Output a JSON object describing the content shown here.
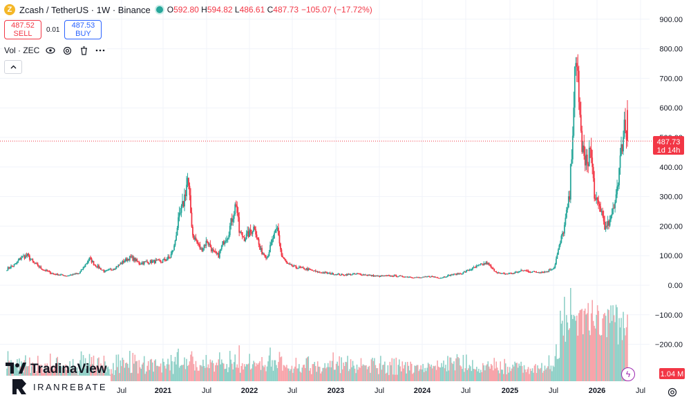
{
  "header": {
    "coin_icon": "Z",
    "symbol": "Zcash / TetherUS · 1W · Binance",
    "status_dot_color": "#26a69a",
    "ohlc": {
      "o_label": "O",
      "o": "592.80",
      "h_label": "H",
      "h": "594.82",
      "l_label": "L",
      "l": "486.61",
      "c_label": "C",
      "c": "487.73",
      "change": "−105.07 (−17.72%)"
    }
  },
  "trade": {
    "sell_price": "487.52",
    "sell_label": "SELL",
    "spread": "0.01",
    "buy_price": "487.53",
    "buy_label": "BUY"
  },
  "volume_indicator": {
    "label": "Vol · ZEC",
    "icons": [
      "eye-icon",
      "settings-icon",
      "trash-icon",
      "more-icon"
    ]
  },
  "collapse_icon": "chevron-up-icon",
  "logos": {
    "primary": "TradinaView",
    "secondary": "IRANREBATE"
  },
  "colors": {
    "up": "#26a69a",
    "down": "#f23645",
    "up_vol": "#8fd0c7",
    "down_vol": "#f7a4aa",
    "grid": "#f0f3fa"
  },
  "chart_data": {
    "type": "candlestick",
    "interval": "1W",
    "price_axis": {
      "ticks": [
        900,
        800,
        700,
        600,
        500,
        400,
        300,
        200,
        100,
        0,
        -100,
        -200
      ],
      "tick_labels": [
        "900.00",
        "800.00",
        "700.00",
        "600.00",
        "500.00",
        "400.00",
        "300.00",
        "200.00",
        "100.00",
        "0.00",
        "−100.00",
        "−200.00"
      ],
      "range": [
        -300,
        930
      ]
    },
    "time_axis": {
      "labels": [
        "Jul",
        "2021",
        "Jul",
        "2022",
        "Jul",
        "2023",
        "Jul",
        "2024",
        "Jul",
        "2025",
        "Jul",
        "2026",
        "Jul"
      ],
      "bold": [
        false,
        true,
        false,
        true,
        false,
        true,
        false,
        true,
        false,
        true,
        false,
        true,
        false
      ]
    },
    "last_price": {
      "value": 487.73,
      "label": "487.73",
      "countdown": "1d 14h"
    },
    "volume_label": "1.04 M",
    "anchors": [
      [
        0,
        55
      ],
      [
        8,
        70
      ],
      [
        14,
        95
      ],
      [
        20,
        100
      ],
      [
        26,
        75
      ],
      [
        34,
        55
      ],
      [
        45,
        38
      ],
      [
        58,
        32
      ],
      [
        70,
        40
      ],
      [
        80,
        90
      ],
      [
        85,
        70
      ],
      [
        95,
        45
      ],
      [
        105,
        60
      ],
      [
        115,
        85
      ],
      [
        120,
        95
      ],
      [
        128,
        75
      ],
      [
        140,
        80
      ],
      [
        150,
        80
      ],
      [
        158,
        95
      ],
      [
        162,
        130
      ],
      [
        165,
        200
      ],
      [
        171,
        280
      ],
      [
        175,
        360
      ],
      [
        180,
        170
      ],
      [
        188,
        120
      ],
      [
        194,
        150
      ],
      [
        200,
        110
      ],
      [
        205,
        100
      ],
      [
        210,
        150
      ],
      [
        214,
        170
      ],
      [
        218,
        225
      ],
      [
        222,
        280
      ],
      [
        225,
        180
      ],
      [
        230,
        160
      ],
      [
        236,
        180
      ],
      [
        240,
        200
      ],
      [
        245,
        120
      ],
      [
        252,
        95
      ],
      [
        258,
        160
      ],
      [
        262,
        190
      ],
      [
        266,
        100
      ],
      [
        272,
        70
      ],
      [
        280,
        60
      ],
      [
        290,
        55
      ],
      [
        300,
        45
      ],
      [
        312,
        40
      ],
      [
        325,
        35
      ],
      [
        340,
        38
      ],
      [
        360,
        30
      ],
      [
        375,
        32
      ],
      [
        390,
        28
      ],
      [
        400,
        25
      ],
      [
        410,
        30
      ],
      [
        420,
        25
      ],
      [
        430,
        35
      ],
      [
        440,
        40
      ],
      [
        450,
        55
      ],
      [
        460,
        70
      ],
      [
        465,
        75
      ],
      [
        470,
        55
      ],
      [
        478,
        38
      ],
      [
        490,
        40
      ],
      [
        500,
        50
      ],
      [
        510,
        45
      ],
      [
        522,
        45
      ],
      [
        530,
        60
      ],
      [
        540,
        200
      ],
      [
        545,
        300
      ],
      [
        550,
        700
      ],
      [
        553,
        720
      ],
      [
        556,
        500
      ],
      [
        560,
        400
      ],
      [
        565,
        460
      ],
      [
        570,
        280
      ],
      [
        575,
        260
      ],
      [
        580,
        190
      ],
      [
        585,
        220
      ],
      [
        590,
        310
      ],
      [
        594,
        420
      ],
      [
        598,
        550
      ],
      [
        601,
        487
      ]
    ]
  }
}
